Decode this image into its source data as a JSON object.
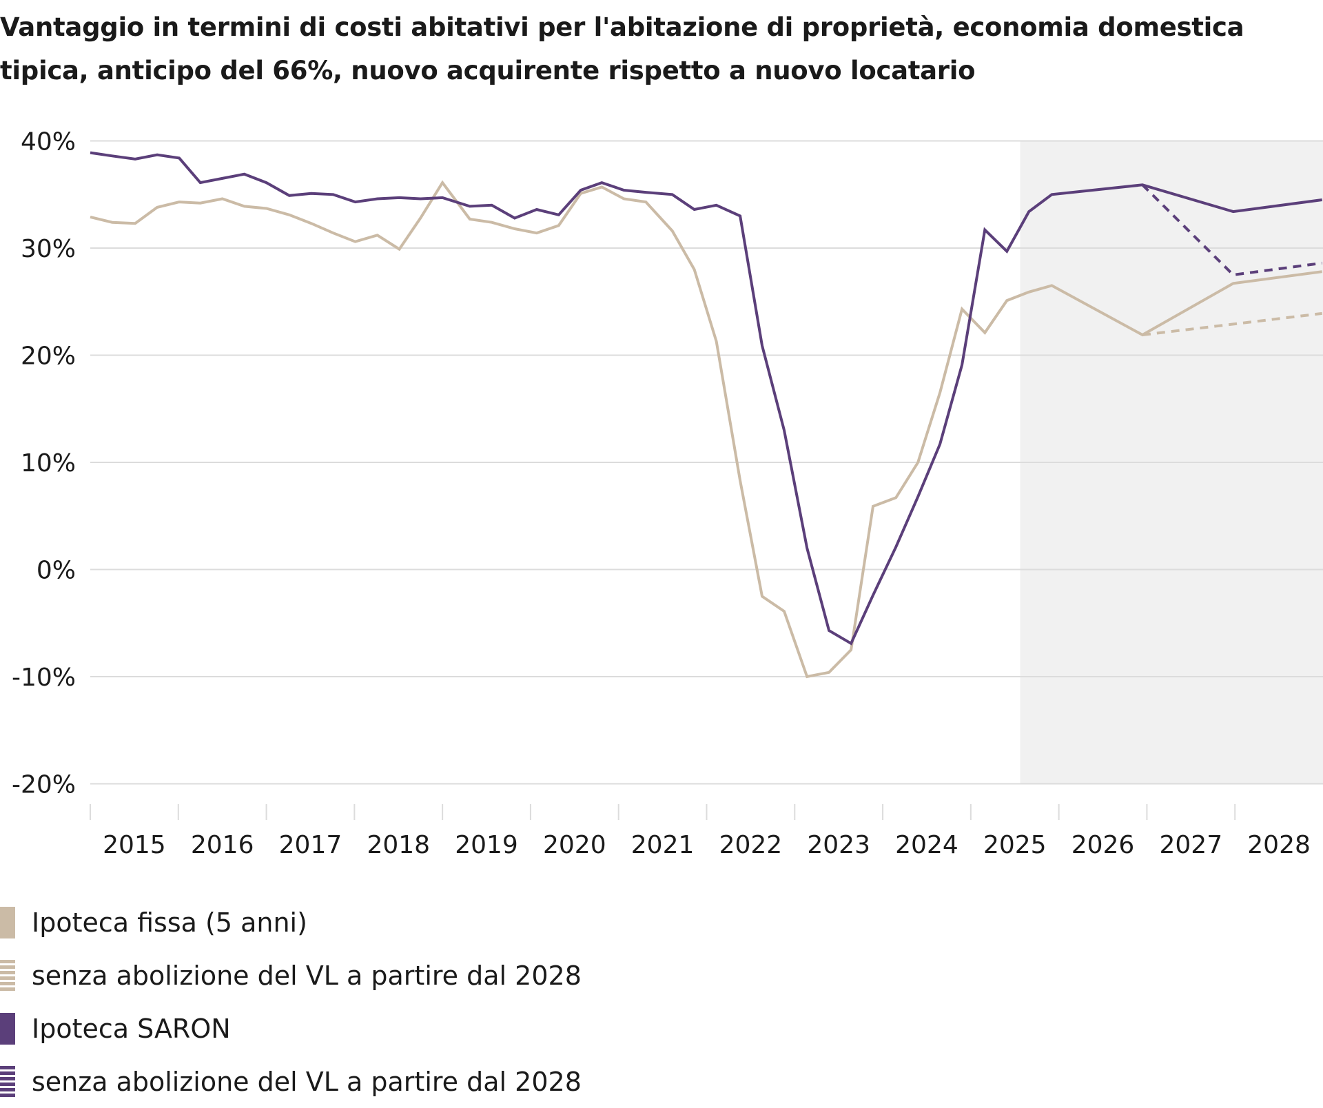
{
  "chart_data": {
    "type": "line",
    "title": "Vantaggio in termini di costi abitativi per l'abitazione di proprietà, economia domestica tipica, anticipo del 66%, nuovo acquirente rispetto a nuovo locatario",
    "xlabel": "",
    "ylabel": "",
    "ylim": [
      -20,
      40
    ],
    "xlim": [
      2015,
      2029
    ],
    "y_ticks": [
      "40%",
      "30%",
      "20%",
      "10%",
      "0%",
      "-10%",
      "-20%"
    ],
    "y_tick_values": [
      40,
      30,
      20,
      10,
      0,
      -10,
      -20
    ],
    "x_ticks": [
      "2015",
      "2016",
      "2017",
      "2018",
      "2019",
      "2020",
      "2021",
      "2022",
      "2023",
      "2024",
      "2025",
      "2026",
      "2027",
      "2028"
    ],
    "grid": "horizontal",
    "forecast_shading_from": 2025.56,
    "legend_placement": "bottom",
    "x": [
      2015.0,
      2015.25,
      2015.51,
      2015.76,
      2016.01,
      2016.25,
      2016.5,
      2016.75,
      2017.0,
      2017.26,
      2017.51,
      2017.76,
      2018.01,
      2018.26,
      2018.51,
      2018.75,
      2019.0,
      2019.31,
      2019.56,
      2019.82,
      2020.07,
      2020.32,
      2020.57,
      2020.81,
      2021.06,
      2021.31,
      2021.61,
      2021.86,
      2022.11,
      2022.38,
      2022.63,
      2022.88,
      2023.14,
      2023.39,
      2023.64,
      2023.89,
      2024.15,
      2024.4,
      2024.65,
      2024.9,
      2025.16,
      2025.41,
      2025.66,
      2025.92,
      2026.95,
      2027.98,
      2028.99
    ],
    "series": [
      {
        "name": "Ipoteca fissa (5 anni)",
        "color": "#cbbba6",
        "style": "solid",
        "values": [
          32.9,
          32.4,
          32.3,
          33.8,
          34.3,
          34.2,
          34.6,
          33.9,
          33.7,
          33.1,
          32.3,
          31.4,
          30.6,
          31.2,
          29.9,
          32.8,
          36.1,
          32.7,
          32.4,
          31.8,
          31.4,
          32.1,
          35.1,
          35.7,
          34.6,
          34.3,
          31.6,
          28.0,
          21.3,
          8.3,
          -2.5,
          -3.9,
          -10.0,
          -9.6,
          -7.5,
          5.9,
          6.7,
          10.0,
          16.5,
          24.3,
          22.1,
          25.1,
          25.9,
          26.5,
          21.9,
          26.7,
          27.8
        ]
      },
      {
        "name": "senza abolizione del VL a partire dal 2028",
        "color": "#cbbba6",
        "style": "dashed",
        "x": [
          2026.95,
          2027.98,
          2028.99
        ],
        "values": [
          21.9,
          22.9,
          23.9
        ]
      },
      {
        "name": "Ipoteca SARON",
        "color": "#5b3f7a",
        "style": "solid",
        "values": [
          38.9,
          38.6,
          38.3,
          38.7,
          38.4,
          36.1,
          36.5,
          36.9,
          36.1,
          34.9,
          35.1,
          35.0,
          34.3,
          34.6,
          34.7,
          34.6,
          34.7,
          33.9,
          34.0,
          32.8,
          33.6,
          33.1,
          35.4,
          36.1,
          35.4,
          35.2,
          35.0,
          33.6,
          34.0,
          33.0,
          20.9,
          13.0,
          2.0,
          -5.7,
          -6.9,
          -2.4,
          2.1,
          6.8,
          11.7,
          19.1,
          31.7,
          29.7,
          33.4,
          35.0,
          35.9,
          33.4,
          34.5
        ]
      },
      {
        "name": "senza abolizione del VL a partire dal 2028",
        "color": "#5b3f7a",
        "style": "dashed",
        "x": [
          2026.95,
          2027.98,
          2028.99
        ],
        "values": [
          35.9,
          27.5,
          28.6
        ]
      }
    ]
  }
}
